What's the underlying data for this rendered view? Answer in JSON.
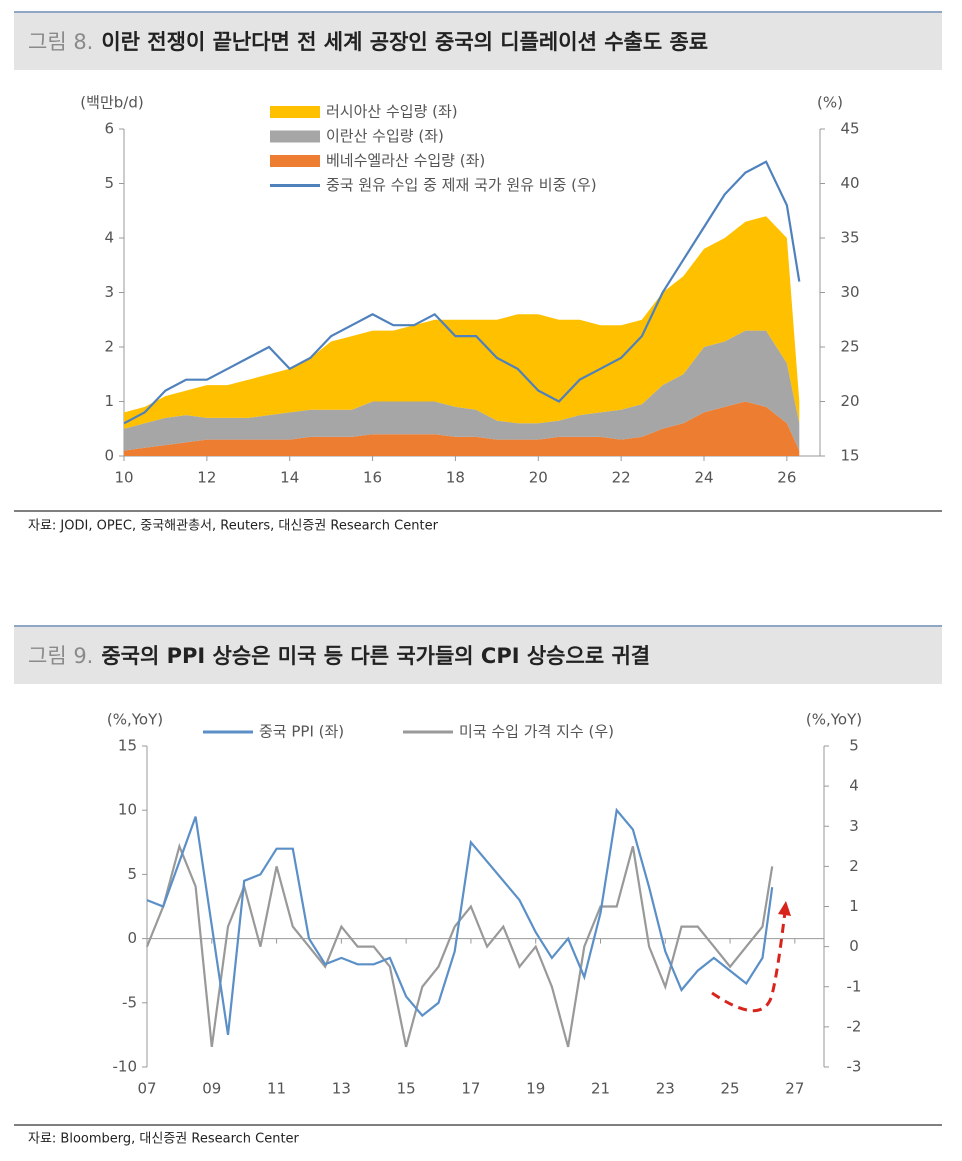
{
  "chart_data": [
    {
      "type": "stacked_area_line",
      "figure_label": "그림 8.",
      "title": "이란 전쟁이 끝난다면 전 세계 공장인 중국의 디플레이션 수출도 종료",
      "ylabel": "(백만b/d)",
      "y2label": "(%)",
      "x": [
        10,
        10.5,
        11,
        11.5,
        12,
        12.5,
        13,
        13.5,
        14,
        14.5,
        15,
        15.5,
        16,
        16.5,
        17,
        17.5,
        18,
        18.5,
        19,
        19.5,
        20,
        20.5,
        21,
        21.5,
        22,
        22.5,
        23,
        23.5,
        24,
        24.5,
        25,
        25.5,
        26,
        26.3
      ],
      "series": [
        {
          "name": "러시아산 수입량 (좌)",
          "color": "#FFC000",
          "values": [
            0.3,
            0.3,
            0.4,
            0.45,
            0.6,
            0.6,
            0.7,
            0.75,
            0.8,
            0.95,
            1.25,
            1.35,
            1.3,
            1.3,
            1.4,
            1.5,
            1.6,
            1.65,
            1.85,
            2.0,
            2.0,
            1.85,
            1.75,
            1.6,
            1.55,
            1.55,
            1.7,
            1.8,
            1.8,
            1.9,
            2.0,
            2.1,
            2.3,
            0.4
          ]
        },
        {
          "name": "이란산 수입량 (좌)",
          "color": "#A6A6A6",
          "values": [
            0.4,
            0.45,
            0.5,
            0.5,
            0.4,
            0.4,
            0.4,
            0.45,
            0.5,
            0.5,
            0.5,
            0.5,
            0.6,
            0.6,
            0.6,
            0.6,
            0.55,
            0.5,
            0.35,
            0.3,
            0.3,
            0.3,
            0.4,
            0.45,
            0.55,
            0.6,
            0.8,
            0.9,
            1.2,
            1.2,
            1.3,
            1.4,
            1.1,
            0.5
          ]
        },
        {
          "name": "베네수엘라산 수입량 (좌)",
          "color": "#ED7D31",
          "values": [
            0.1,
            0.15,
            0.2,
            0.25,
            0.3,
            0.3,
            0.3,
            0.3,
            0.3,
            0.35,
            0.35,
            0.35,
            0.4,
            0.4,
            0.4,
            0.4,
            0.35,
            0.35,
            0.3,
            0.3,
            0.3,
            0.35,
            0.35,
            0.35,
            0.3,
            0.35,
            0.5,
            0.6,
            0.8,
            0.9,
            1.0,
            0.9,
            0.6,
            0.1
          ]
        },
        {
          "name": "중국 원유 수입 중 제재 국가 원유 비중 (우)",
          "color": "#4F81BD",
          "axis": "y2",
          "values": [
            18,
            19,
            21,
            22,
            22,
            23,
            24,
            25,
            23,
            24,
            26,
            27,
            28,
            27,
            27,
            28,
            26,
            26,
            24,
            23,
            21,
            20,
            22,
            23,
            24,
            26,
            30,
            33,
            36,
            39,
            41,
            42,
            38,
            31
          ]
        }
      ],
      "xlim": [
        10,
        26.8
      ],
      "xticks": [
        10,
        12,
        14,
        16,
        18,
        20,
        22,
        24,
        26
      ],
      "ylim": [
        0,
        6
      ],
      "yticks": [
        0,
        1,
        2,
        3,
        4,
        5,
        6
      ],
      "y2lim": [
        15,
        45
      ],
      "y2ticks": [
        15,
        20,
        25,
        30,
        35,
        40,
        45
      ],
      "legend": "top-left",
      "source": "자료: JODI, OPEC, 중국해관총서, Reuters, 대신증권 Research Center"
    },
    {
      "type": "line",
      "figure_label": "그림 9.",
      "title": "중국의 PPI 상승은 미국 등 다른 국가들의 CPI 상승으로 귀결",
      "ylabel": "(%,YoY)",
      "y2label": "(%,YoY)",
      "x": [
        7,
        7.5,
        8,
        8.5,
        9,
        9.5,
        10,
        10.5,
        11,
        11.5,
        12,
        12.5,
        13,
        13.5,
        14,
        14.5,
        15,
        15.5,
        16,
        16.5,
        17,
        17.5,
        18,
        18.5,
        19,
        19.5,
        20,
        20.5,
        21,
        21.5,
        22,
        22.5,
        23,
        23.5,
        24,
        24.5,
        25,
        25.5,
        26,
        26.3
      ],
      "series": [
        {
          "name": "중국 PPI (좌)",
          "color": "#5B8FC7",
          "values": [
            3,
            2.5,
            6,
            9.5,
            1,
            -7.5,
            4.5,
            5,
            7,
            7,
            0,
            -2,
            -1.5,
            -2,
            -2,
            -1.5,
            -4.5,
            -6,
            -5,
            -1,
            7.5,
            6,
            4.5,
            3,
            0.5,
            -1.5,
            0,
            -3,
            2,
            10,
            8.5,
            4,
            -1,
            -4,
            -2.5,
            -1.5,
            -2.5,
            -3.5,
            -1.5,
            4
          ]
        },
        {
          "name": "미국 수입 가격 지수 (우)",
          "color": "#999999",
          "axis": "y2",
          "values": [
            0,
            1,
            2.5,
            1.5,
            -2.5,
            0.5,
            1.5,
            0,
            2,
            0.5,
            0,
            -0.5,
            0.5,
            0,
            0,
            -0.5,
            -2.5,
            -1,
            -0.5,
            0.5,
            1,
            0,
            0.5,
            -0.5,
            0,
            -1,
            -2.5,
            0,
            1,
            1,
            2.5,
            0,
            -1,
            0.5,
            0.5,
            0,
            -0.5,
            0,
            0.5,
            2
          ]
        }
      ],
      "xlim": [
        7,
        27.9
      ],
      "xticks": [
        {
          "value": 7,
          "label": "07"
        },
        {
          "value": 9,
          "label": "09"
        },
        11,
        13,
        15,
        17,
        19,
        21,
        23,
        25,
        27
      ],
      "ylim": [
        -10,
        15
      ],
      "yticks": [
        -10,
        -5,
        0,
        5,
        10,
        15
      ],
      "y2lim": [
        -3,
        5
      ],
      "y2ticks": [
        -3,
        -2,
        -1,
        0,
        1,
        2,
        3,
        4,
        5
      ],
      "legend": "top",
      "source": "자료: Bloomberg, 대신증권 Research Center"
    }
  ]
}
